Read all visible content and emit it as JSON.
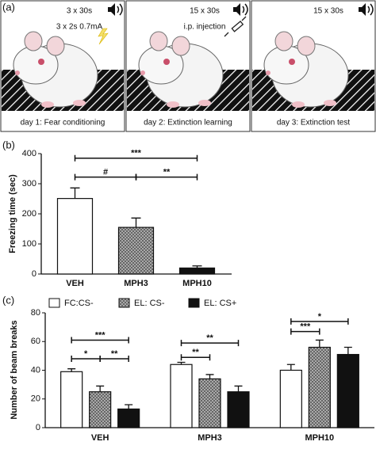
{
  "panel_a": {
    "label": "(a)",
    "boxes": [
      {
        "top": "3 x 30s",
        "note": "3 x 2s 0.7mA",
        "caption": "day 1: Fear conditioning"
      },
      {
        "top": "15 x 30s",
        "note": "i.p. injection",
        "caption": "day 2: Extinction learning"
      },
      {
        "top": "15 x 30s",
        "caption": "day 3: Extinction test"
      }
    ]
  },
  "chart_data": [
    {
      "type": "bar",
      "panel": "(b)",
      "y_label": "Freezing time (sec)",
      "categories": [
        "VEH",
        "MPH3",
        "MPH10"
      ],
      "values": [
        251,
        155,
        20
      ],
      "errors": [
        35,
        31,
        7
      ],
      "fills": [
        "white",
        "hatch",
        "black"
      ],
      "ylim": [
        0,
        400
      ],
      "yticks": [
        0,
        100,
        200,
        300,
        400
      ],
      "annotations": [
        {
          "label": "***",
          "from": "VEH",
          "to": "MPH10",
          "y": 385
        },
        {
          "label": "#",
          "from": "VEH",
          "to": "MPH3",
          "y": 322
        },
        {
          "label": "**",
          "from": "MPH3",
          "to": "MPH10",
          "y": 322
        }
      ]
    },
    {
      "type": "grouped_bar",
      "panel": "(c)",
      "y_label": "Number of beam breaks",
      "categories": [
        "VEH",
        "MPH3",
        "MPH10"
      ],
      "series": [
        {
          "name": "FC:CS-",
          "fill": "white",
          "values": [
            39,
            44,
            40
          ],
          "errors": [
            2,
            1.5,
            4
          ]
        },
        {
          "name": "EL: CS-",
          "fill": "hatch",
          "values": [
            25,
            34,
            56
          ],
          "errors": [
            4,
            3,
            5
          ]
        },
        {
          "name": "EL: CS+",
          "fill": "black",
          "values": [
            13,
            25,
            51
          ],
          "errors": [
            3,
            4,
            5
          ]
        }
      ],
      "ylim": [
        0,
        80
      ],
      "yticks": [
        0,
        20,
        40,
        60,
        80
      ],
      "annotations": [
        {
          "label": "***",
          "group": "VEH",
          "from": "FC:CS-",
          "to": "EL: CS+",
          "y": 61
        },
        {
          "label": "*",
          "group": "VEH",
          "from": "FC:CS-",
          "to": "EL: CS-",
          "y": 48
        },
        {
          "label": "**",
          "group": "VEH",
          "from": "EL: CS-",
          "to": "EL: CS+",
          "y": 48
        },
        {
          "label": "**",
          "group": "MPH3",
          "from": "FC:CS-",
          "to": "EL: CS-",
          "y": 49
        },
        {
          "label": "**",
          "group": "MPH3",
          "from": "FC:CS-",
          "to": "EL: CS+",
          "y": 59
        },
        {
          "label": "***",
          "group": "MPH10",
          "from": "FC:CS-",
          "to": "EL: CS-",
          "y": 67
        },
        {
          "label": "*",
          "group": "MPH10",
          "from": "FC:CS-",
          "to": "EL: CS+",
          "y": 74
        }
      ]
    }
  ]
}
